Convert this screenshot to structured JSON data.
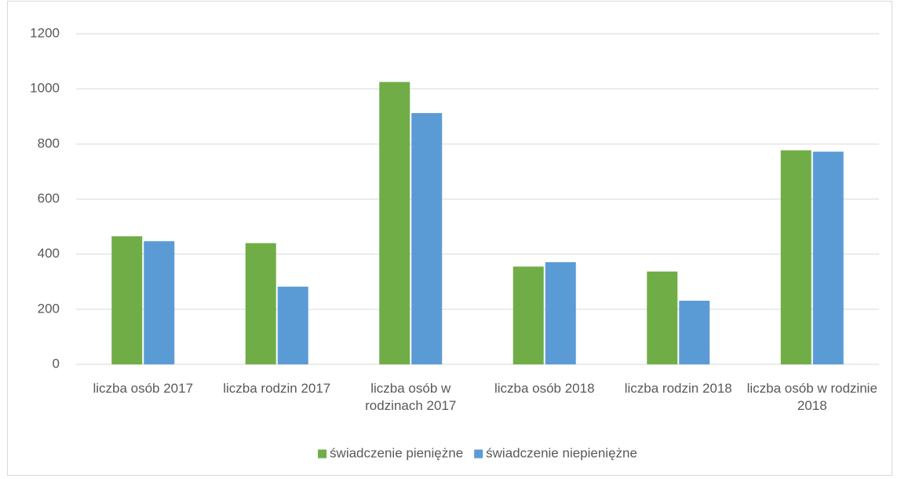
{
  "chart_data": {
    "type": "bar",
    "categories": [
      "liczba osób 2017",
      "liczba rodzin 2017",
      "liczba osób w rodzinach 2017",
      "liczba osób 2018",
      "liczba rodzin 2018",
      "liczba osób w rodzinie 2018"
    ],
    "series": [
      {
        "name": "świadczenie pieniężne",
        "color": "#70ad47",
        "values": [
          465,
          440,
          1025,
          355,
          337,
          777
        ]
      },
      {
        "name": "świadczenie niepieniężne",
        "color": "#5b9bd5",
        "values": [
          447,
          282,
          912,
          371,
          231,
          772
        ]
      }
    ],
    "ylim": [
      0,
      1200
    ],
    "yticks": [
      0,
      200,
      400,
      600,
      800,
      1000,
      1200
    ],
    "grid": true,
    "legend": "bottom"
  }
}
